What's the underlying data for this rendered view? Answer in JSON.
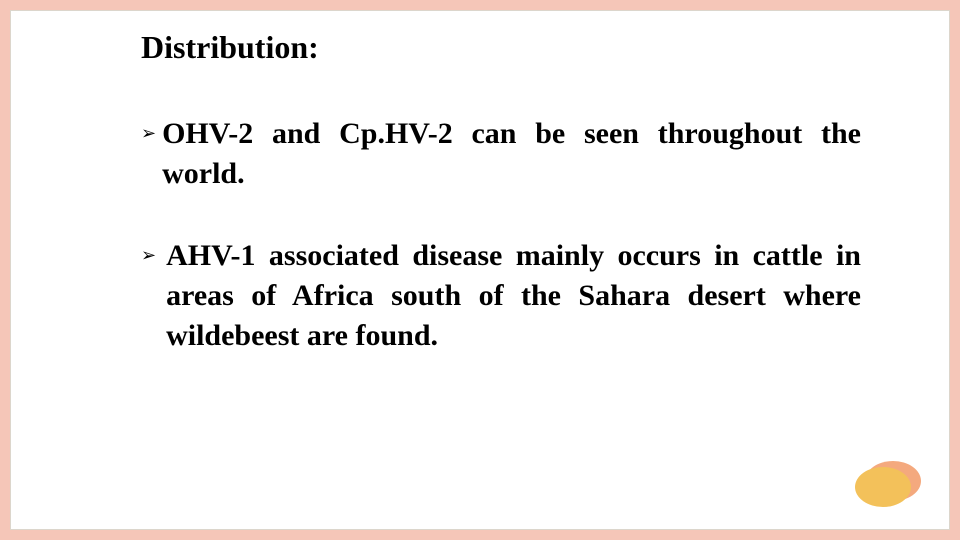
{
  "slide": {
    "background_color": "#f5c6b8",
    "card_background": "#ffffff",
    "card_border": "#dcd6cc",
    "font_family": "Georgia, Times New Roman, serif",
    "heading": "Distribution:",
    "heading_fontsize": 32,
    "heading_bold": true,
    "bullets": [
      {
        "marker": "➢",
        "text": "OHV-2 and Cp.HV-2 can be seen throughout the world."
      },
      {
        "marker": "➢",
        "text": "AHV-1 associated disease mainly occurs in cattle in areas of Africa south of the Sahara desert where wildebeest are found."
      }
    ],
    "bullet_fontsize": 30,
    "bullet_lineheight": 40,
    "bullet_bold": true,
    "marker_fontsize": 18,
    "decoration": {
      "ellipse_back_color": "#f4a97e",
      "ellipse_front_color": "#f3c15a"
    }
  }
}
